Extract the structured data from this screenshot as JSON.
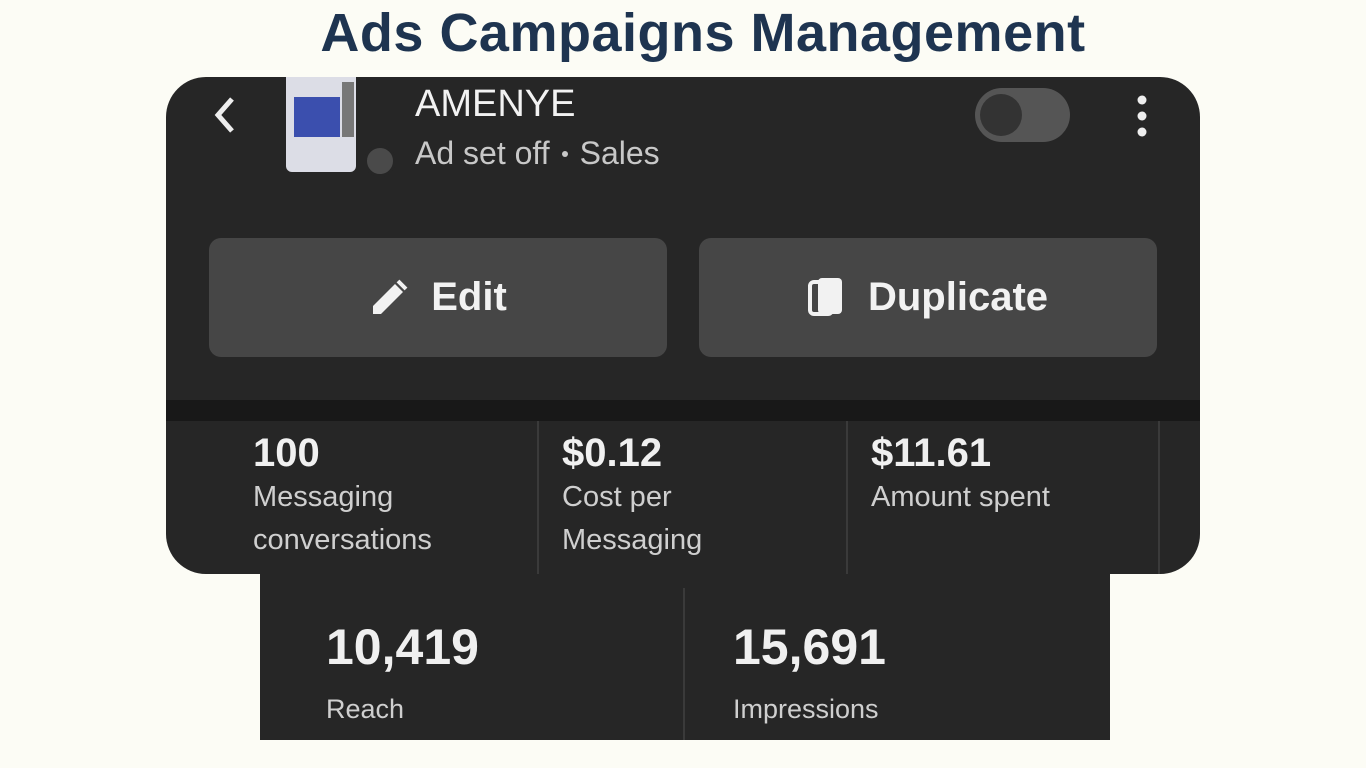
{
  "header": {
    "title": "Ads Campaigns Management"
  },
  "ad_set": {
    "name": "AMENYE",
    "status": "Ad set off",
    "objective": "Sales"
  },
  "buttons": [
    "Edit",
    "Duplicate"
  ],
  "metrics": [
    {
      "value": "100",
      "label": "Messaging conversations"
    },
    {
      "value": "$0.12",
      "label": "Cost per Messaging"
    },
    {
      "value": "$11.61",
      "label": "Amount spent"
    }
  ],
  "secondary_metrics": [
    {
      "value": "10,419",
      "label": "Reach"
    },
    {
      "value": "15,691",
      "label": "Impressions"
    }
  ]
}
